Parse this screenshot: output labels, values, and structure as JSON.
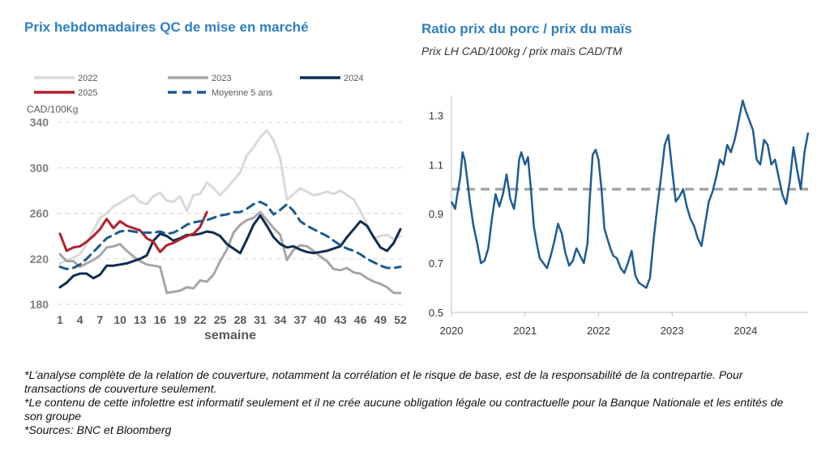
{
  "titles": {
    "left": "Prix hebdomadaires QC de mise en marché",
    "right": "Ratio prix du porc / prix du maïs",
    "right_subtitle": "Prix LH CAD/100kg / prix maïs CAD/TM"
  },
  "notes": [
    "*L’analyse complète de la relation de couverture, notamment la corrélation et le risque de base, est de la responsabilité de la contrepartie. Pour transactions de couverture seulement.",
    "*Le contenu de cette infolettre est informatif seulement et il ne crée aucune obligation légale ou contractuelle pour la Banque Nationale et les entités de son groupe",
    "*Sources: BNC et Bloomberg"
  ],
  "chart_data": [
    {
      "type": "line",
      "title": "Prix hebdomadaires QC de mise en marché",
      "xlabel": "semaine",
      "ylabel": "CAD/100Kg",
      "xlim": [
        1,
        52
      ],
      "ylim": [
        180,
        340
      ],
      "y_ticks": [
        "180",
        "220",
        "260",
        "300",
        "340"
      ],
      "x_ticks": [
        "1",
        "4",
        "7",
        "10",
        "13",
        "16",
        "19",
        "22",
        "25",
        "28",
        "31",
        "34",
        "37",
        "40",
        "43",
        "46",
        "49",
        "52"
      ],
      "grid": "horizontal dashed",
      "legend": "top",
      "series": [
        {
          "name": "2022",
          "color": "#d9d9d9",
          "dash": "",
          "width": 3,
          "x": [
            1,
            2,
            3,
            4,
            5,
            6,
            7,
            8,
            9,
            10,
            11,
            12,
            13,
            14,
            15,
            16,
            17,
            18,
            19,
            20,
            21,
            22,
            23,
            24,
            25,
            26,
            27,
            28,
            29,
            30,
            31,
            32,
            33,
            34,
            35,
            36,
            37,
            38,
            39,
            40,
            41,
            42,
            43,
            44,
            45,
            46,
            47,
            48,
            49,
            50,
            51,
            52
          ],
          "y": [
            216,
            219,
            221,
            224,
            233,
            245,
            256,
            260,
            266,
            269,
            273,
            276,
            270,
            268,
            275,
            278,
            271,
            270,
            275,
            262,
            276,
            277,
            287,
            282,
            276,
            282,
            289,
            296,
            311,
            318,
            327,
            333,
            324,
            308,
            272,
            277,
            282,
            279,
            276,
            277,
            279,
            277,
            280,
            276,
            272,
            262,
            250,
            238,
            240,
            241,
            237,
            240
          ]
        },
        {
          "name": "2023",
          "color": "#a6a6a6",
          "dash": "",
          "width": 3,
          "x": [
            1,
            2,
            3,
            4,
            5,
            6,
            7,
            8,
            9,
            10,
            11,
            12,
            13,
            14,
            15,
            16,
            17,
            18,
            19,
            20,
            21,
            22,
            23,
            24,
            25,
            26,
            27,
            28,
            29,
            30,
            31,
            32,
            33,
            34,
            35,
            36,
            37,
            38,
            39,
            40,
            41,
            42,
            43,
            44,
            45,
            46,
            47,
            48,
            49,
            50,
            51,
            52
          ],
          "y": [
            224,
            218,
            218,
            213,
            216,
            219,
            223,
            230,
            231,
            233,
            227,
            222,
            218,
            215,
            214,
            213,
            190,
            191,
            192,
            195,
            194,
            201,
            200,
            206,
            218,
            228,
            243,
            250,
            254,
            256,
            261,
            254,
            247,
            241,
            219,
            228,
            232,
            231,
            227,
            222,
            218,
            211,
            210,
            212,
            208,
            207,
            203,
            200,
            198,
            195,
            190,
            190
          ]
        },
        {
          "name": "2024",
          "color": "#0d2d4f",
          "dash": "",
          "width": 3,
          "x": [
            1,
            2,
            3,
            4,
            5,
            6,
            7,
            8,
            9,
            10,
            11,
            12,
            13,
            14,
            15,
            16,
            17,
            18,
            19,
            20,
            21,
            22,
            23,
            24,
            25,
            26,
            27,
            28,
            29,
            30,
            31,
            32,
            33,
            34,
            35,
            36,
            37,
            38,
            39,
            40,
            41,
            42,
            43,
            44,
            45,
            46,
            47,
            48,
            49,
            50,
            51,
            52
          ],
          "y": [
            195,
            199,
            205,
            207,
            207,
            203,
            206,
            214,
            214,
            215,
            216,
            218,
            220,
            223,
            236,
            242,
            240,
            236,
            238,
            241,
            241,
            242,
            244,
            243,
            240,
            233,
            229,
            225,
            237,
            250,
            258,
            249,
            239,
            233,
            230,
            231,
            228,
            226,
            225,
            226,
            227,
            229,
            231,
            239,
            246,
            253,
            249,
            239,
            230,
            227,
            234,
            246
          ]
        },
        {
          "name": "2025",
          "color": "#b3202c",
          "dash": "",
          "width": 3,
          "x": [
            1,
            2,
            3,
            4,
            5,
            6,
            7,
            8,
            9,
            10,
            11,
            12,
            13,
            14,
            15,
            16,
            17,
            18,
            19,
            20,
            21,
            22,
            23
          ],
          "y": [
            242,
            227,
            230,
            231,
            235,
            240,
            246,
            255,
            247,
            253,
            249,
            247,
            245,
            238,
            235,
            226,
            232,
            234,
            237,
            240,
            242,
            248,
            261
          ]
        },
        {
          "name": "Moyenne 5 ans",
          "color": "#1a5b8f",
          "dash": "10 7",
          "width": 3,
          "x": [
            1,
            2,
            3,
            4,
            5,
            6,
            7,
            8,
            9,
            10,
            11,
            12,
            13,
            14,
            15,
            16,
            17,
            18,
            19,
            20,
            21,
            22,
            23,
            24,
            25,
            26,
            27,
            28,
            29,
            30,
            31,
            32,
            33,
            34,
            35,
            36,
            37,
            38,
            39,
            40,
            41,
            42,
            43,
            44,
            45,
            46,
            47,
            48,
            49,
            50,
            51,
            52
          ],
          "y": [
            213,
            211,
            212,
            215,
            220,
            226,
            232,
            238,
            241,
            244,
            245,
            244,
            243,
            243,
            243,
            244,
            242,
            243,
            246,
            250,
            252,
            253,
            254,
            256,
            258,
            259,
            261,
            261,
            264,
            268,
            270,
            267,
            259,
            263,
            268,
            262,
            253,
            249,
            246,
            243,
            240,
            236,
            232,
            229,
            227,
            224,
            220,
            217,
            214,
            212,
            212,
            213
          ]
        }
      ]
    },
    {
      "type": "line",
      "title": "Ratio prix du porc / prix du maïs",
      "subtitle": "Prix LH CAD/100kg / prix maïs CAD/TM",
      "xlim": [
        2020.0,
        2024.85
      ],
      "ylim": [
        0.5,
        1.4
      ],
      "y_ticks": [
        "0.5",
        "0.7",
        "0.9",
        "1.1",
        "1.3"
      ],
      "x_ticks": [
        "2020",
        "2021",
        "2022",
        "2023",
        "2024"
      ],
      "reference_line": 1.0,
      "grid": "off",
      "series": [
        {
          "name": "",
          "color": "#1f5c91",
          "width": 2.5,
          "x": [
            2020.0,
            2020.05,
            2020.08,
            2020.12,
            2020.15,
            2020.18,
            2020.21,
            2020.25,
            2020.3,
            2020.35,
            2020.4,
            2020.45,
            2020.5,
            2020.55,
            2020.6,
            2020.65,
            2020.7,
            2020.75,
            2020.8,
            2020.85,
            2020.88,
            2020.92,
            2020.95,
            2021.0,
            2021.04,
            2021.08,
            2021.12,
            2021.16,
            2021.2,
            2021.25,
            2021.3,
            2021.35,
            2021.4,
            2021.45,
            2021.5,
            2021.55,
            2021.6,
            2021.65,
            2021.7,
            2021.75,
            2021.8,
            2021.85,
            2021.88,
            2021.92,
            2021.96,
            2022.0,
            2022.04,
            2022.08,
            2022.12,
            2022.16,
            2022.2,
            2022.25,
            2022.3,
            2022.35,
            2022.4,
            2022.45,
            2022.5,
            2022.55,
            2022.6,
            2022.65,
            2022.7,
            2022.75,
            2022.8,
            2022.85,
            2022.9,
            2022.95,
            2023.0,
            2023.05,
            2023.1,
            2023.15,
            2023.2,
            2023.25,
            2023.3,
            2023.35,
            2023.4,
            2023.45,
            2023.5,
            2023.55,
            2023.6,
            2023.65,
            2023.7,
            2023.75,
            2023.8,
            2023.85,
            2023.88,
            2023.92,
            2023.96,
            2024.0,
            2024.05,
            2024.1,
            2024.15,
            2024.2,
            2024.25,
            2024.3,
            2024.35,
            2024.4,
            2024.45,
            2024.5,
            2024.55,
            2024.6,
            2024.65,
            2024.7,
            2024.75,
            2024.8,
            2024.85
          ],
          "y": [
            0.95,
            0.92,
            0.98,
            1.05,
            1.15,
            1.12,
            1.05,
            0.95,
            0.85,
            0.78,
            0.7,
            0.71,
            0.76,
            0.88,
            0.98,
            0.93,
            0.98,
            1.06,
            0.96,
            0.92,
            0.98,
            1.12,
            1.15,
            1.1,
            1.13,
            1.0,
            0.85,
            0.78,
            0.72,
            0.7,
            0.68,
            0.73,
            0.79,
            0.86,
            0.82,
            0.74,
            0.69,
            0.71,
            0.76,
            0.73,
            0.7,
            0.78,
            0.96,
            1.14,
            1.16,
            1.12,
            1.0,
            0.84,
            0.8,
            0.76,
            0.73,
            0.72,
            0.68,
            0.66,
            0.7,
            0.75,
            0.65,
            0.62,
            0.61,
            0.6,
            0.64,
            0.8,
            0.93,
            1.05,
            1.18,
            1.22,
            1.08,
            0.95,
            0.97,
            1.0,
            0.93,
            0.88,
            0.85,
            0.8,
            0.77,
            0.86,
            0.95,
            0.99,
            1.05,
            1.12,
            1.1,
            1.18,
            1.15,
            1.2,
            1.24,
            1.3,
            1.36,
            1.32,
            1.28,
            1.24,
            1.12,
            1.1,
            1.2,
            1.18,
            1.1,
            1.12,
            1.05,
            0.98,
            0.94,
            1.03,
            1.17,
            1.08,
            1.0,
            1.15,
            1.23
          ]
        }
      ]
    }
  ]
}
